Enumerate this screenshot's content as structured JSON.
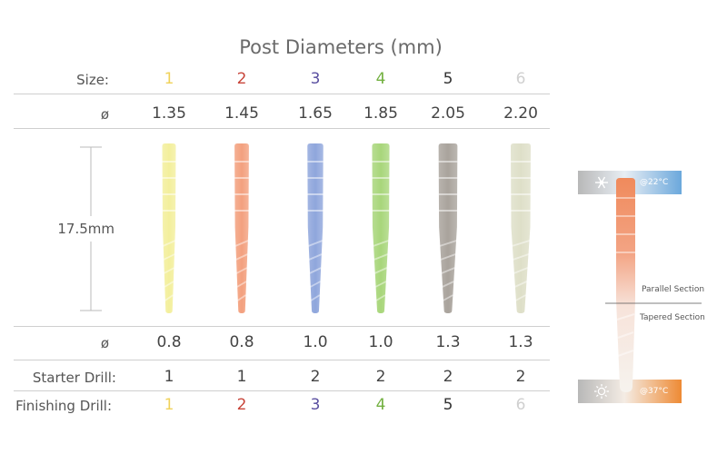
{
  "title": "Post Diameters (mm)",
  "rows": {
    "size_label": "Size:",
    "top_diameter_label": "ø",
    "length_label": "17.5mm",
    "bottom_diameter_label": "ø",
    "starter_label": "Starter Drill:",
    "finishing_label": "Finishing Drill:"
  },
  "posts": [
    {
      "size": "1",
      "top_diameter": "1.35",
      "bottom_diameter": "0.8",
      "starter": "1",
      "finishing": "1",
      "color": "#f0d25a",
      "body_color": "#f3ef9c"
    },
    {
      "size": "2",
      "top_diameter": "1.45",
      "bottom_diameter": "0.8",
      "starter": "1",
      "finishing": "2",
      "color": "#c8453a",
      "body_color": "#f3a07e"
    },
    {
      "size": "3",
      "top_diameter": "1.65",
      "bottom_diameter": "1.0",
      "starter": "2",
      "finishing": "3",
      "color": "#5a4fa0",
      "body_color": "#8fa6dc"
    },
    {
      "size": "4",
      "top_diameter": "1.85",
      "bottom_diameter": "1.0",
      "starter": "2",
      "finishing": "4",
      "color": "#72b040",
      "body_color": "#a8d67a"
    },
    {
      "size": "5",
      "top_diameter": "2.05",
      "bottom_diameter": "1.3",
      "starter": "2",
      "finishing": "5",
      "color": "#333333",
      "body_color": "#a9a39c"
    },
    {
      "size": "6",
      "top_diameter": "2.20",
      "bottom_diameter": "1.3",
      "starter": "2",
      "finishing": "6",
      "color": "#d0d0d0",
      "body_color": "#dedfc8"
    }
  ],
  "side_diagram": {
    "cold_temp": "@22°C",
    "warm_temp": "@37°C",
    "parallel_label": "Parallel Section",
    "tapered_label": "Tapered Section",
    "cold_color": "#6ba8dc",
    "warm_color": "#ee8a34",
    "cold_icon": "snowflake-icon",
    "warm_icon": "sun-icon"
  }
}
